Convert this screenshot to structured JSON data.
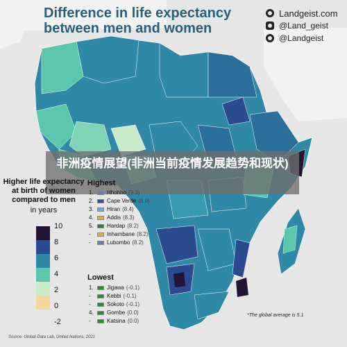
{
  "title": "Difference in life expectancy between men and women",
  "banner": "非洲疫情展望(非洲当前疫情发展趋势和现状)",
  "social": [
    {
      "icon": "globe-icon",
      "text": "Landgeist.com"
    },
    {
      "icon": "instagram-icon",
      "text": "@Land_geist"
    },
    {
      "icon": "twitter-icon",
      "text": "@Landgeist"
    }
  ],
  "legend": {
    "title": "Higher life expectancy at birth of women compared to men",
    "unit": "in years",
    "colors": [
      "#221433",
      "#2a4b8f",
      "#2f88a6",
      "#5cc6ab",
      "#c8eac8",
      "#f2d69a"
    ],
    "ticks": [
      "10",
      "8",
      "6",
      "4",
      "2",
      "0",
      "-2"
    ]
  },
  "highest": {
    "heading": "Highest",
    "items": [
      {
        "rank": "1.",
        "name": "Hhohho",
        "value": "(9.3)",
        "flag": "#6b7db3"
      },
      {
        "rank": "2.",
        "name": "Cape Verde",
        "value": "(8.9)",
        "flag": "#3b4fa0"
      },
      {
        "rank": "3.",
        "name": "Hiran",
        "value": "(8.4)",
        "flag": "#6aa9e0"
      },
      {
        "rank": "4.",
        "name": "Addis",
        "value": "(8.3)",
        "flag": "#d8b23a"
      },
      {
        "rank": "5.",
        "name": "Hardap",
        "value": "(8.2)",
        "flag": "#3b7a3a"
      },
      {
        "rank": "-",
        "name": "Inhambane",
        "value": "(8.2)",
        "flag": "#d8b23a"
      },
      {
        "rank": "-",
        "name": "Lubombo",
        "value": "(8.2)",
        "flag": "#6b7db3"
      }
    ]
  },
  "lowest": {
    "heading": "Lowest",
    "items": [
      {
        "rank": "1.",
        "name": "Jigawa",
        "value": "(-0.1)",
        "flag": "#2f8a3a"
      },
      {
        "rank": "-",
        "name": "Kebbi",
        "value": "(-0.1)",
        "flag": "#2f8a3a"
      },
      {
        "rank": "-",
        "name": "Sokoto",
        "value": "(-0.1)",
        "flag": "#2f8a3a"
      },
      {
        "rank": "4.",
        "name": "Gombe",
        "value": "(0.0)",
        "flag": "#2f8a3a"
      },
      {
        "rank": "-",
        "name": "Katsina",
        "value": "(0.0)",
        "flag": "#2f8a3a"
      }
    ]
  },
  "note": "*The global average is 5.1",
  "source": "Source: Global Data Lab, United Nations, 2021"
}
